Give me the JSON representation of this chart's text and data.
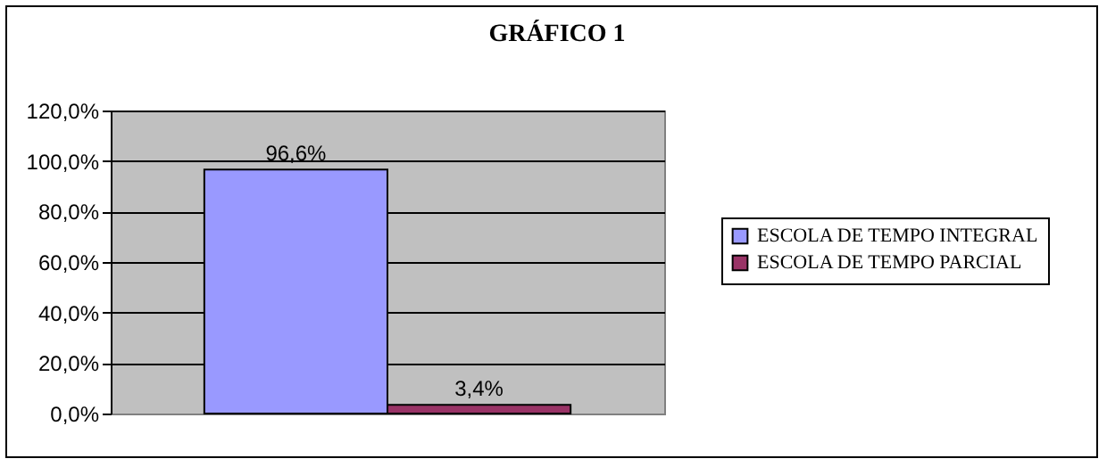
{
  "chart_data": {
    "type": "bar",
    "title": "GRÁFICO 1",
    "categories": [
      null
    ],
    "series": [
      {
        "name": "ESCOLA DE TEMPO INTEGRAL",
        "color": "#9999ff",
        "values": [
          96.6
        ],
        "value_labels": [
          "96,6%"
        ]
      },
      {
        "name": "ESCOLA DE TEMPO PARCIAL",
        "color": "#993366",
        "values": [
          3.4
        ],
        "value_labels": [
          "3,4%"
        ]
      }
    ],
    "ylim": [
      0,
      120
    ],
    "yticks": [
      {
        "value": 0,
        "label": "0,0%"
      },
      {
        "value": 20,
        "label": "20,0%"
      },
      {
        "value": 40,
        "label": "40,0%"
      },
      {
        "value": 60,
        "label": "60,0%"
      },
      {
        "value": 80,
        "label": "80,0%"
      },
      {
        "value": 100,
        "label": "100,0%"
      },
      {
        "value": 120,
        "label": "120,0%"
      }
    ],
    "grid": "y",
    "legend": "right"
  }
}
